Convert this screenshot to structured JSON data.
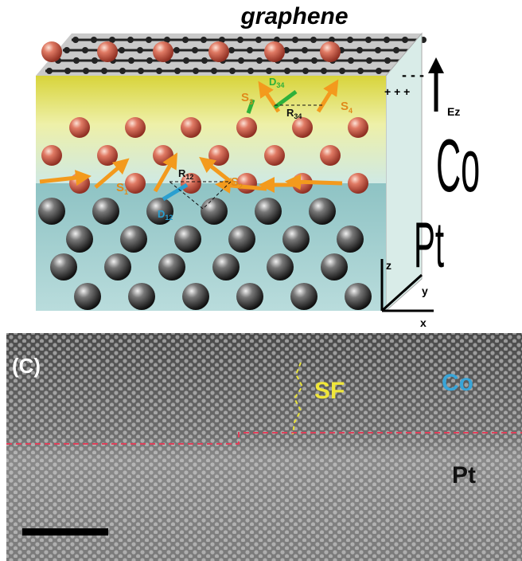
{
  "panel_top": {
    "graphene_label": "graphene",
    "field_label": "Ez",
    "charges": {
      "minus": "- - -",
      "plus": "+ + +"
    },
    "layers": {
      "co": "Co",
      "pt": "Pt"
    },
    "axes": {
      "x": "x",
      "y": "y",
      "z": "z"
    },
    "spins": [
      {
        "symbol": "S",
        "index": "1"
      },
      {
        "symbol": "S",
        "index": "2"
      },
      {
        "symbol": "S",
        "index": "3"
      },
      {
        "symbol": "S",
        "index": "4"
      }
    ],
    "distances": [
      {
        "symbol": "R",
        "index": "12"
      },
      {
        "symbol": "R",
        "index": "34"
      }
    ],
    "dm_vectors": [
      {
        "symbol": "D",
        "index": "12"
      },
      {
        "symbol": "D",
        "index": "34"
      }
    ]
  },
  "panel_bottom": {
    "panel_label": "(C)",
    "fault_label": "SF",
    "layers": {
      "co": "Co",
      "pt": "Pt"
    }
  }
}
